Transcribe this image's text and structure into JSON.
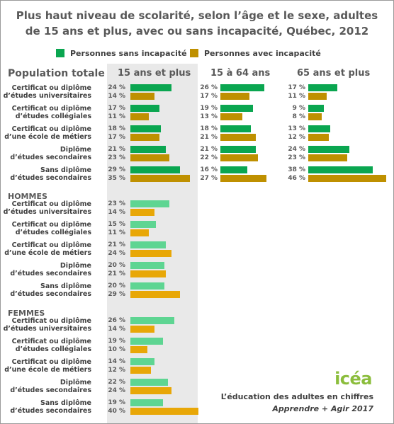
{
  "colors": {
    "sans_total": "#0aa650",
    "avec_total": "#bf9000",
    "sans_light": "#5ed592",
    "avec_light": "#e8a707"
  },
  "chart_data": {
    "type": "bar",
    "title_lines": [
      "Plus haut niveau de scolarité, selon l’âge et le sexe, adultes",
      "de 15 ans et plus, avec ou sans incapacité, Québec, 2012"
    ],
    "legend": {
      "sans": "Personnes sans incapacité",
      "avec": "Personnes avec incapacité"
    },
    "columns": [
      "15 ans et plus",
      "15 à 64 ans",
      "65 ans et plus"
    ],
    "sections": [
      {
        "title": "Population totale",
        "rows": [
          {
            "label": [
              "Certificat ou diplôme",
              "d’études universitaires"
            ],
            "sans": [
              24,
              26,
              17
            ],
            "avec": [
              14,
              17,
              11
            ]
          },
          {
            "label": [
              "Certificat ou diplôme",
              "d’études collégiales"
            ],
            "sans": [
              17,
              19,
              9
            ],
            "avec": [
              11,
              13,
              8
            ]
          },
          {
            "label": [
              "Certificat ou diplôme",
              "d’une école de métiers"
            ],
            "sans": [
              18,
              18,
              13
            ],
            "avec": [
              17,
              21,
              12
            ]
          },
          {
            "label": [
              "Diplôme",
              "d’études secondaires"
            ],
            "sans": [
              21,
              21,
              24
            ],
            "avec": [
              23,
              22,
              23
            ]
          },
          {
            "label": [
              "Sans diplôme",
              "d’études secondaires"
            ],
            "sans": [
              29,
              16,
              38
            ],
            "avec": [
              35,
              27,
              46
            ]
          }
        ]
      },
      {
        "title": "HOMMES",
        "rows": [
          {
            "label": [
              "Certificat ou diplôme",
              "d’études universitaires"
            ],
            "sans": [
              23
            ],
            "avec": [
              14
            ]
          },
          {
            "label": [
              "Certificat ou diplôme",
              "d’études collégiales"
            ],
            "sans": [
              15
            ],
            "avec": [
              11
            ]
          },
          {
            "label": [
              "Certificat ou diplôme",
              "d’une école de métiers"
            ],
            "sans": [
              21
            ],
            "avec": [
              24
            ]
          },
          {
            "label": [
              "Diplôme",
              "d’études secondaires"
            ],
            "sans": [
              20
            ],
            "avec": [
              21
            ]
          },
          {
            "label": [
              "Sans diplôme",
              "d’études secondaires"
            ],
            "sans": [
              20
            ],
            "avec": [
              29
            ]
          }
        ]
      },
      {
        "title": "FEMMES",
        "rows": [
          {
            "label": [
              "Certificat ou diplôme",
              "d’études universitaires"
            ],
            "sans": [
              26
            ],
            "avec": [
              14
            ]
          },
          {
            "label": [
              "Certificat ou diplôme",
              "d’études collégiales"
            ],
            "sans": [
              19
            ],
            "avec": [
              10
            ]
          },
          {
            "label": [
              "Certificat ou diplôme",
              "d’une école de métiers"
            ],
            "sans": [
              14
            ],
            "avec": [
              12
            ]
          },
          {
            "label": [
              "Diplôme",
              "d’études secondaires"
            ],
            "sans": [
              22
            ],
            "avec": [
              24
            ]
          },
          {
            "label": [
              "Sans diplôme",
              "d’études secondaires"
            ],
            "sans": [
              19
            ],
            "avec": [
              40
            ]
          }
        ]
      }
    ],
    "unit": "%"
  },
  "footer": {
    "logo": "icéa",
    "line1": "L’éducation des adultes en chiffres",
    "line2": "Apprendre + Agir 2017"
  }
}
